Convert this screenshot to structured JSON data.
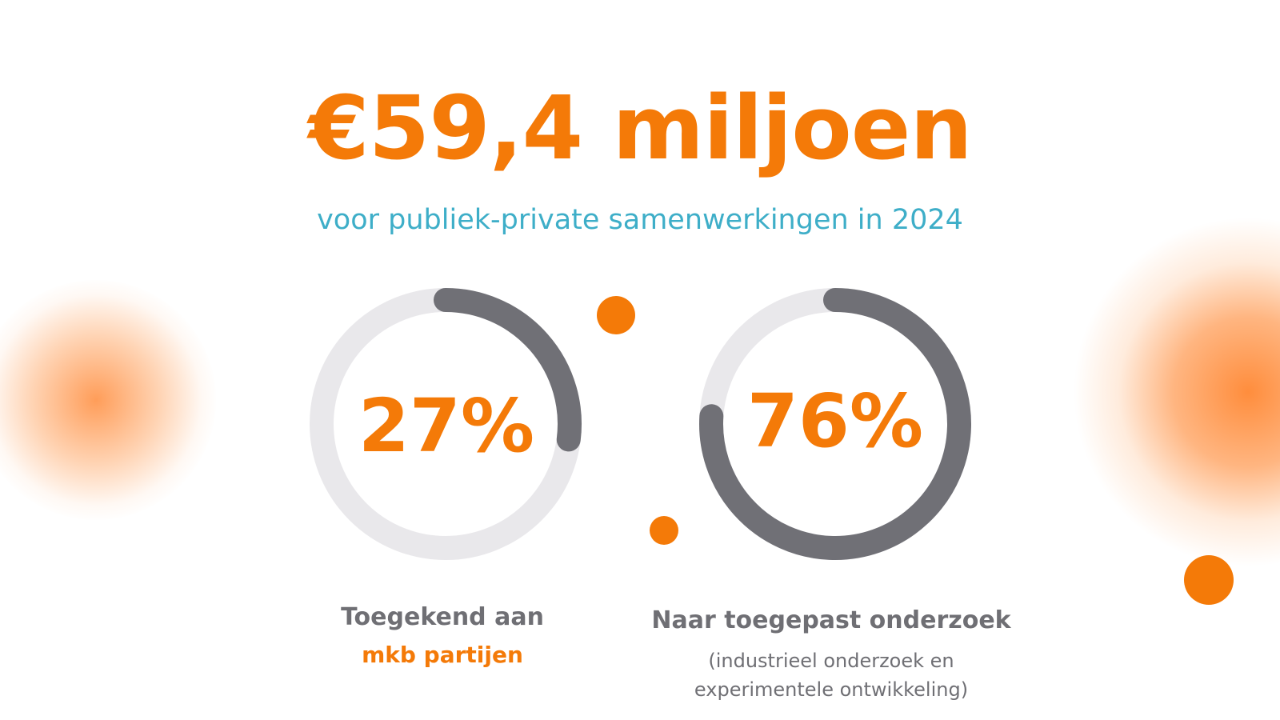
{
  "headline": "€59,4 miljoen",
  "subheadline": "voor publiek-private samenwerkingen in 2024",
  "colors": {
    "accent": "#f47a08",
    "subtitle": "#3eaec8",
    "ring_track": "#e9e8eb",
    "ring_fill": "#707076",
    "label_gray": "#6f6f74"
  },
  "chart_data": [
    {
      "type": "pie",
      "value": 27,
      "unit": "%",
      "label_text": "27%",
      "caption_line1": "Toegekend aan",
      "caption_line2": "mkb partijen"
    },
    {
      "type": "pie",
      "value": 76,
      "unit": "%",
      "label_text": "76%",
      "caption_line1": "Naar toegepast onderzoek",
      "caption_line2": "(industrieel onderzoek en",
      "caption_line3": "experimentele ontwikkeling)"
    }
  ]
}
